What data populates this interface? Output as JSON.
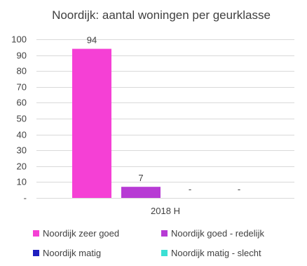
{
  "chart_data": {
    "type": "bar",
    "title": "Noordijk: aantal woningen per geurklasse",
    "categories": [
      "2018 H"
    ],
    "series": [
      {
        "name": "Noordijk zeer goed",
        "values": [
          94
        ],
        "color": "#f540d5",
        "label": "94"
      },
      {
        "name": "Noordijk goed - redelijk",
        "values": [
          7
        ],
        "color": "#b73bd4",
        "label": "7"
      },
      {
        "name": "Noordijk matig",
        "values": [
          0
        ],
        "color": "#1f1fbf",
        "label": "-"
      },
      {
        "name": "Noordijk matig - slecht",
        "values": [
          0
        ],
        "color": "#3ce0d4",
        "label": "-"
      }
    ],
    "ylim": [
      0,
      100
    ],
    "yticks": [
      0,
      10,
      20,
      30,
      40,
      50,
      60,
      70,
      80,
      90,
      100
    ],
    "ytick_labels": [
      "-",
      "10",
      "20",
      "30",
      "40",
      "50",
      "60",
      "70",
      "80",
      "90",
      "100"
    ],
    "gridlines": true,
    "legend_position": "bottom"
  }
}
